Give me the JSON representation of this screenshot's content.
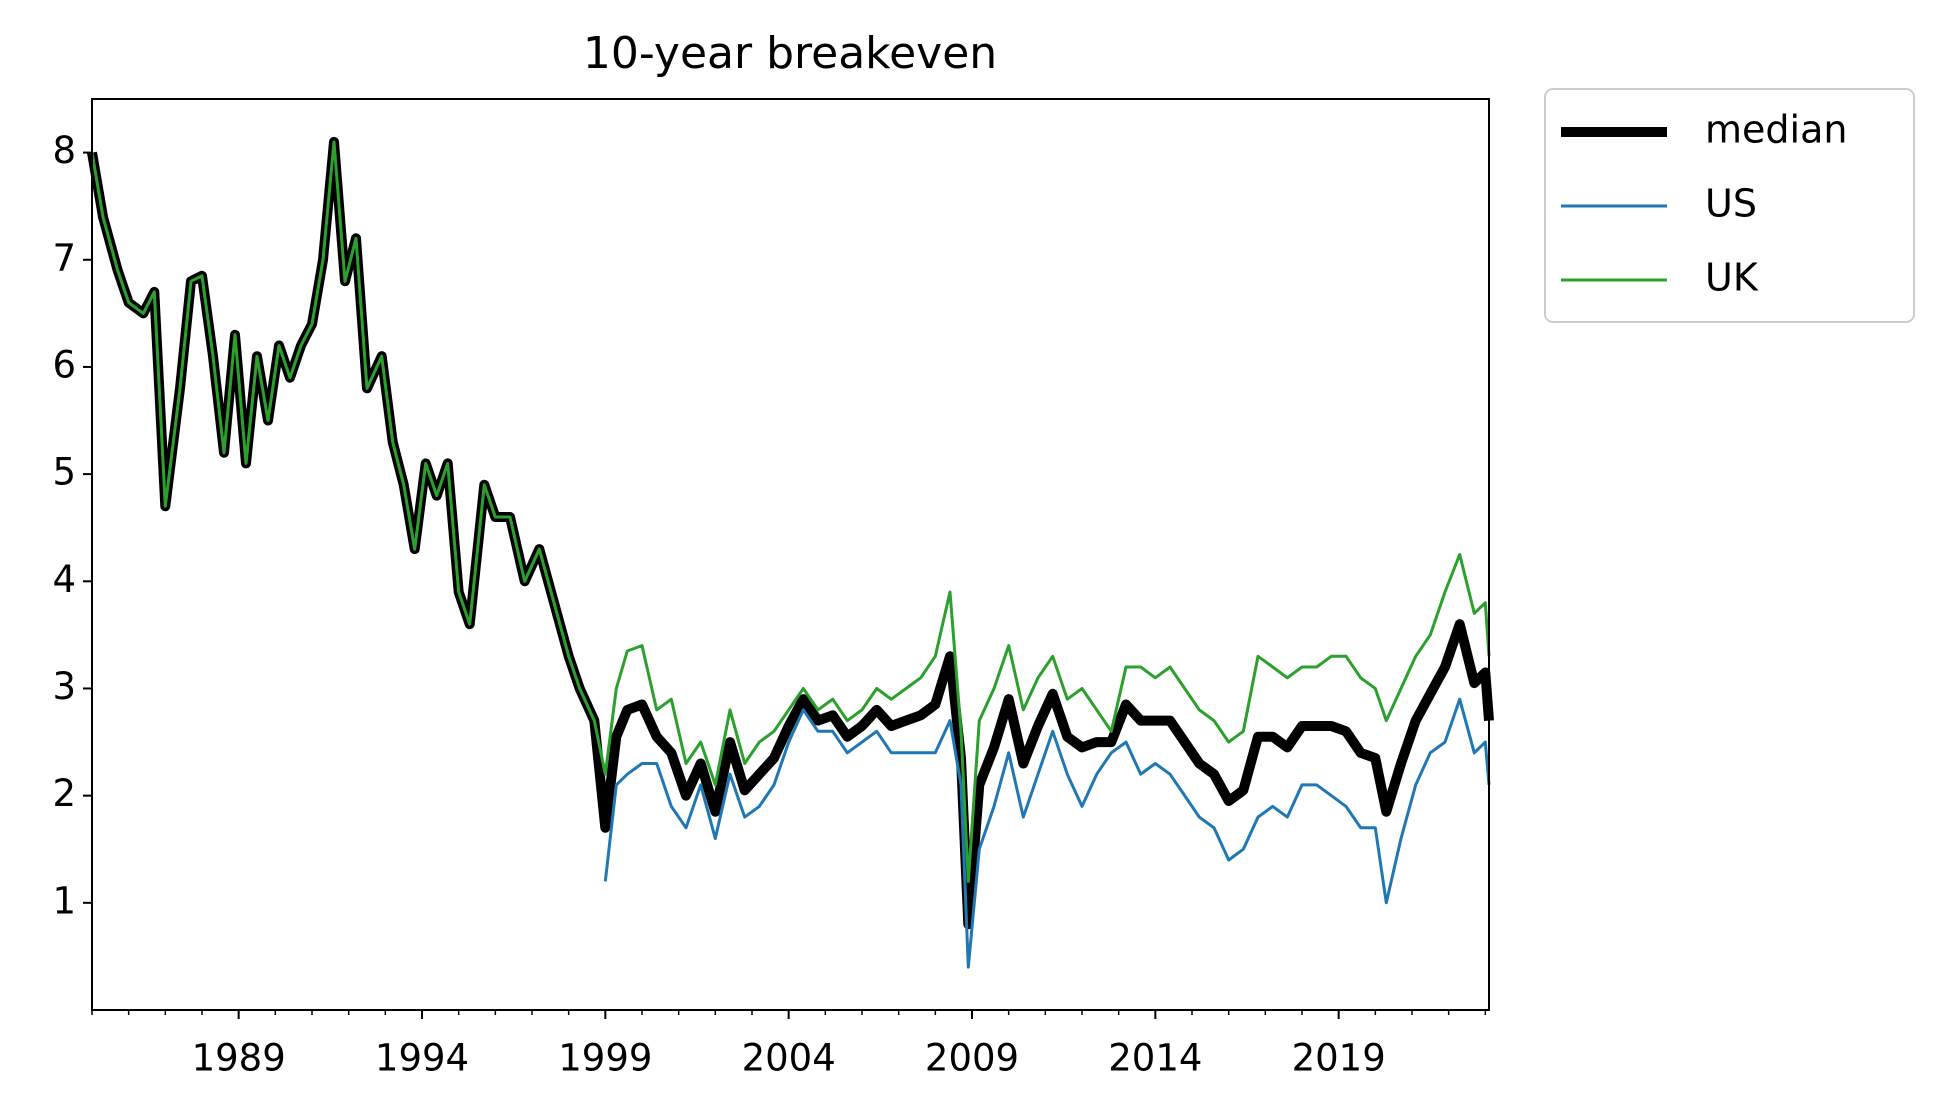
{
  "chart_data": {
    "type": "line",
    "title": "10-year breakeven",
    "x": [
      1985.0,
      1985.3,
      1985.7,
      1986.0,
      1986.4,
      1986.7,
      1987.0,
      1987.4,
      1987.7,
      1988.0,
      1988.3,
      1988.6,
      1988.9,
      1989.2,
      1989.5,
      1989.8,
      1990.1,
      1990.4,
      1990.7,
      1991.0,
      1991.3,
      1991.6,
      1991.9,
      1992.2,
      1992.5,
      1992.9,
      1993.2,
      1993.5,
      1993.8,
      1994.1,
      1994.4,
      1994.7,
      1995.0,
      1995.3,
      1995.7,
      1996.0,
      1996.4,
      1996.8,
      1997.2,
      1997.6,
      1998.0,
      1998.3,
      1998.7,
      1999.0,
      1999.3,
      1999.6,
      2000.0,
      2000.4,
      2000.8,
      2001.2,
      2001.6,
      2002.0,
      2002.4,
      2002.8,
      2003.2,
      2003.6,
      2004.0,
      2004.4,
      2004.8,
      2005.2,
      2005.6,
      2006.0,
      2006.4,
      2006.8,
      2007.2,
      2007.6,
      2008.0,
      2008.4,
      2008.7,
      2008.9,
      2009.2,
      2009.6,
      2010.0,
      2010.4,
      2010.8,
      2011.2,
      2011.6,
      2012.0,
      2012.4,
      2012.8,
      2013.2,
      2013.6,
      2014.0,
      2014.4,
      2014.8,
      2015.2,
      2015.6,
      2016.0,
      2016.4,
      2016.8,
      2017.2,
      2017.6,
      2018.0,
      2018.4,
      2018.8,
      2019.2,
      2019.6,
      2020.0,
      2020.3,
      2020.7,
      2021.1,
      2021.5,
      2021.9,
      2022.3,
      2022.7,
      2023.0,
      2023.1
    ],
    "series": [
      {
        "name": "median",
        "color": "#000000",
        "linewidth": 10,
        "values": [
          8.0,
          7.4,
          6.9,
          6.6,
          6.5,
          6.7,
          4.7,
          5.8,
          6.8,
          6.85,
          6.1,
          5.2,
          6.3,
          5.1,
          6.1,
          5.5,
          6.2,
          5.9,
          6.2,
          6.4,
          7.0,
          8.1,
          6.8,
          7.2,
          5.8,
          6.1,
          5.3,
          4.9,
          4.3,
          5.1,
          4.8,
          5.1,
          3.9,
          3.6,
          4.9,
          4.6,
          4.6,
          4.0,
          4.3,
          3.8,
          3.3,
          3.0,
          2.7,
          1.7,
          2.55,
          2.8,
          2.85,
          2.55,
          2.4,
          2.0,
          2.3,
          1.85,
          2.5,
          2.05,
          2.2,
          2.35,
          2.65,
          2.9,
          2.7,
          2.75,
          2.55,
          2.65,
          2.8,
          2.65,
          2.7,
          2.75,
          2.85,
          3.3,
          2.35,
          0.8,
          2.1,
          2.45,
          2.9,
          2.3,
          2.65,
          2.95,
          2.55,
          2.45,
          2.5,
          2.5,
          2.85,
          2.7,
          2.7,
          2.7,
          2.5,
          2.3,
          2.2,
          1.95,
          2.05,
          2.55,
          2.55,
          2.45,
          2.65,
          2.65,
          2.65,
          2.6,
          2.4,
          2.35,
          1.85,
          2.3,
          2.7,
          2.95,
          3.2,
          3.6,
          3.05,
          3.15,
          2.7
        ]
      },
      {
        "name": "US",
        "color": "#1f77b4",
        "linewidth": 3,
        "values": [
          null,
          null,
          null,
          null,
          null,
          null,
          null,
          null,
          null,
          null,
          null,
          null,
          null,
          null,
          null,
          null,
          null,
          null,
          null,
          null,
          null,
          null,
          null,
          null,
          null,
          null,
          null,
          null,
          null,
          null,
          null,
          null,
          null,
          null,
          null,
          null,
          null,
          null,
          null,
          null,
          null,
          null,
          null,
          1.2,
          2.1,
          2.2,
          2.3,
          2.3,
          1.9,
          1.7,
          2.1,
          1.6,
          2.2,
          1.8,
          1.9,
          2.1,
          2.5,
          2.8,
          2.6,
          2.6,
          2.4,
          2.5,
          2.6,
          2.4,
          2.4,
          2.4,
          2.4,
          2.7,
          2.1,
          0.4,
          1.5,
          1.9,
          2.4,
          1.8,
          2.2,
          2.6,
          2.2,
          1.9,
          2.2,
          2.4,
          2.5,
          2.2,
          2.3,
          2.2,
          2.0,
          1.8,
          1.7,
          1.4,
          1.5,
          1.8,
          1.9,
          1.8,
          2.1,
          2.1,
          2.0,
          1.9,
          1.7,
          1.7,
          1.0,
          1.6,
          2.1,
          2.4,
          2.5,
          2.9,
          2.4,
          2.5,
          2.1
        ]
      },
      {
        "name": "UK",
        "color": "#2ca02c",
        "linewidth": 3,
        "values": [
          8.0,
          7.4,
          6.9,
          6.6,
          6.5,
          6.7,
          4.7,
          5.8,
          6.8,
          6.85,
          6.1,
          5.2,
          6.3,
          5.1,
          6.1,
          5.5,
          6.2,
          5.9,
          6.2,
          6.4,
          7.0,
          8.1,
          6.8,
          7.2,
          5.8,
          6.1,
          5.3,
          4.9,
          4.3,
          5.1,
          4.8,
          5.1,
          3.9,
          3.6,
          4.9,
          4.6,
          4.6,
          4.0,
          4.3,
          3.8,
          3.3,
          3.0,
          2.7,
          2.2,
          3.0,
          3.35,
          3.4,
          2.8,
          2.9,
          2.3,
          2.5,
          2.1,
          2.8,
          2.3,
          2.5,
          2.6,
          2.8,
          3.0,
          2.8,
          2.9,
          2.7,
          2.8,
          3.0,
          2.9,
          3.0,
          3.1,
          3.3,
          3.9,
          2.6,
          1.2,
          2.7,
          3.0,
          3.4,
          2.8,
          3.1,
          3.3,
          2.9,
          3.0,
          2.8,
          2.6,
          3.2,
          3.2,
          3.1,
          3.2,
          3.0,
          2.8,
          2.7,
          2.5,
          2.6,
          3.3,
          3.2,
          3.1,
          3.2,
          3.2,
          3.3,
          3.3,
          3.1,
          3.0,
          2.7,
          3.0,
          3.3,
          3.5,
          3.9,
          4.25,
          3.7,
          3.8,
          3.3
        ]
      }
    ],
    "xlim": [
      1985.0,
      2023.1
    ],
    "ylim": [
      0,
      8.5
    ],
    "xticks": [
      1989,
      1994,
      1999,
      2004,
      2009,
      2014,
      2019
    ],
    "xminorticks": [
      1985,
      1986,
      1987,
      1988,
      1990,
      1991,
      1992,
      1993,
      1995,
      1996,
      1997,
      1998,
      2000,
      2001,
      2002,
      2003,
      2005,
      2006,
      2007,
      2008,
      2010,
      2011,
      2012,
      2013,
      2015,
      2016,
      2017,
      2018,
      2020,
      2021,
      2022,
      2023
    ],
    "yticks": [
      1,
      2,
      3,
      4,
      5,
      6,
      7,
      8
    ],
    "grid": false,
    "legend_loc": "outside-upper-right"
  }
}
